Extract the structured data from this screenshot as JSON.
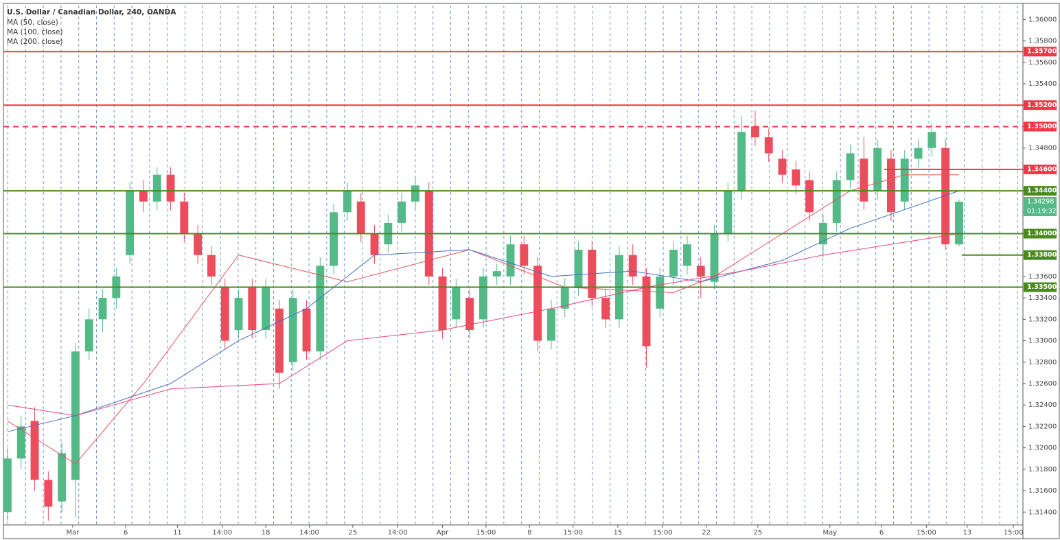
{
  "chart_data": {
    "type": "candlestick",
    "title": "U.S. Dollar / Canadian Dollar, 240, OANDA",
    "up_color": "#53b987",
    "down_color": "#eb4d5c",
    "open": [
      1.314,
      1.319,
      1.3225,
      1.317,
      1.315,
      1.317,
      1.329,
      1.332,
      1.334,
      1.338,
      1.344,
      1.343,
      1.3455,
      1.343,
      1.34,
      1.338,
      1.335,
      1.331,
      1.335,
      1.331,
      1.333,
      1.328,
      1.333,
      1.329,
      1.337,
      1.342,
      1.343,
      1.34,
      1.339,
      1.341,
      1.343,
      1.344,
      1.336,
      1.332,
      1.334,
      1.332,
      1.336,
      1.336,
      1.339,
      1.337,
      1.33,
      1.333,
      1.335,
      1.3385,
      1.334,
      1.332,
      1.338,
      1.336,
      1.333,
      1.336,
      1.337,
      1.337,
      1.3355,
      1.34,
      1.344,
      1.35,
      1.349,
      1.347,
      1.346,
      1.345,
      1.339,
      1.341,
      1.345,
      1.347,
      1.344,
      1.347,
      1.343,
      1.347,
      1.348,
      1.348,
      1.339
    ],
    "high": [
      1.32,
      1.323,
      1.3238,
      1.3178,
      1.3205,
      1.3298,
      1.333,
      1.3348,
      1.3368,
      1.3448,
      1.345,
      1.3462,
      1.3462,
      1.3438,
      1.3408,
      1.3388,
      1.3358,
      1.3348,
      1.3358,
      1.3358,
      1.3338,
      1.3348,
      1.3338,
      1.3378,
      1.3428,
      1.3448,
      1.3438,
      1.3408,
      1.3418,
      1.3438,
      1.3452,
      1.3448,
      1.3368,
      1.3358,
      1.3348,
      1.3368,
      1.3372,
      1.3398,
      1.3398,
      1.3378,
      1.3338,
      1.3358,
      1.3393,
      1.3393,
      1.3348,
      1.3388,
      1.339,
      1.3368,
      1.3368,
      1.3393,
      1.3398,
      1.3378,
      1.3408,
      1.3448,
      1.351,
      1.3515,
      1.3498,
      1.3478,
      1.3468,
      1.3458,
      1.3418,
      1.3458,
      1.3483,
      1.349,
      1.3488,
      1.3478,
      1.3478,
      1.3488,
      1.3503,
      1.3488,
      1.3432
    ],
    "low": [
      1.3132,
      1.318,
      1.316,
      1.3132,
      1.314,
      1.3135,
      1.3282,
      1.3308,
      1.333,
      1.3372,
      1.342,
      1.3422,
      1.3422,
      1.3392,
      1.3372,
      1.3352,
      1.3292,
      1.3302,
      1.3302,
      1.3302,
      1.3255,
      1.3272,
      1.3282,
      1.3282,
      1.3362,
      1.3412,
      1.3392,
      1.3372,
      1.3382,
      1.3402,
      1.3422,
      1.3352,
      1.3302,
      1.3312,
      1.3302,
      1.3312,
      1.3352,
      1.3352,
      1.3362,
      1.329,
      1.3292,
      1.3322,
      1.3342,
      1.3332,
      1.3312,
      1.3312,
      1.3352,
      1.3275,
      1.3322,
      1.3352,
      1.3362,
      1.334,
      1.3348,
      1.3392,
      1.3432,
      1.3482,
      1.3467,
      1.3447,
      1.3437,
      1.3412,
      1.3378,
      1.3402,
      1.3442,
      1.3422,
      1.3432,
      1.3412,
      1.3422,
      1.3462,
      1.3472,
      1.3385,
      1.3388
    ],
    "close": [
      1.319,
      1.322,
      1.317,
      1.3145,
      1.3195,
      1.329,
      1.332,
      1.334,
      1.336,
      1.344,
      1.343,
      1.3455,
      1.343,
      1.34,
      1.338,
      1.336,
      1.33,
      1.334,
      1.331,
      1.335,
      1.327,
      1.334,
      1.329,
      1.337,
      1.342,
      1.344,
      1.34,
      1.338,
      1.341,
      1.343,
      1.3445,
      1.336,
      1.331,
      1.335,
      1.331,
      1.336,
      1.3365,
      1.339,
      1.337,
      1.33,
      1.333,
      1.335,
      1.3385,
      1.334,
      1.332,
      1.338,
      1.336,
      1.3295,
      1.336,
      1.3385,
      1.339,
      1.336,
      1.34,
      1.344,
      1.3495,
      1.349,
      1.3475,
      1.3455,
      1.3445,
      1.342,
      1.341,
      1.345,
      1.3475,
      1.343,
      1.348,
      1.342,
      1.347,
      1.348,
      1.3495,
      1.339,
      1.34298
    ],
    "series": [
      {
        "name": "MA (50, close)",
        "color": "#e8505b",
        "x": [
          0,
          5,
          10,
          17,
          25,
          34,
          41,
          49,
          52,
          57,
          62,
          66,
          70
        ],
        "values": [
          1.3225,
          1.3185,
          1.326,
          1.338,
          1.3355,
          1.3385,
          1.335,
          1.3345,
          1.336,
          1.34,
          1.344,
          1.3455,
          1.3455
        ]
      },
      {
        "name": "MA (100, close)",
        "color": "#3f6fc4",
        "x": [
          0,
          5,
          12,
          17,
          22,
          27,
          34,
          40,
          46,
          51,
          57,
          62,
          70
        ],
        "values": [
          1.3215,
          1.323,
          1.326,
          1.33,
          1.333,
          1.338,
          1.3385,
          1.336,
          1.3365,
          1.3355,
          1.3375,
          1.3405,
          1.344
        ]
      },
      {
        "name": "MA (200, close)",
        "color": "#e8457a",
        "x": [
          0,
          5,
          12,
          20,
          25,
          32,
          40,
          47,
          54,
          60,
          70
        ],
        "values": [
          1.324,
          1.323,
          1.3255,
          1.326,
          1.33,
          1.331,
          1.333,
          1.335,
          1.3365,
          1.338,
          1.34
        ]
      }
    ],
    "levels": [
      {
        "value": 1.357,
        "label": "1.35700",
        "color": "#f23645"
      },
      {
        "value": 1.352,
        "label": "1.35200",
        "color": "#f23645"
      },
      {
        "value": 1.35,
        "label": "1.35000",
        "color": "#f23645",
        "dashed": true
      },
      {
        "value": 1.346,
        "label": "1.34600",
        "color": "#f23645",
        "from": 64.5
      },
      {
        "value": 1.344,
        "label": "1.34400",
        "color": "#4a8a1c"
      },
      {
        "value": 1.34,
        "label": "1.34000",
        "color": "#4a8a1c"
      },
      {
        "value": 1.338,
        "label": "1.33800",
        "color": "#4a8a1c",
        "from": 70.2
      },
      {
        "value": 1.335,
        "label": "1.33500",
        "color": "#4a8a1c"
      }
    ],
    "last_price": 1.34298,
    "countdown": "01:19:32",
    "xlim": [
      -0.3,
      74.7
    ],
    "xticks": [
      {
        "value": 4.8,
        "label": "Mar"
      },
      {
        "value": 8.7,
        "label": "6"
      },
      {
        "value": 12.5,
        "label": "11"
      },
      {
        "value": 15.8,
        "label": "14:00"
      },
      {
        "value": 19.0,
        "label": "18"
      },
      {
        "value": 22.2,
        "label": "14:00"
      },
      {
        "value": 25.4,
        "label": "25"
      },
      {
        "value": 28.7,
        "label": "14:00"
      },
      {
        "value": 32.0,
        "label": "Apr"
      },
      {
        "value": 35.2,
        "label": "15:00"
      },
      {
        "value": 38.4,
        "label": "8"
      },
      {
        "value": 41.6,
        "label": "15:00"
      },
      {
        "value": 44.9,
        "label": "15"
      },
      {
        "value": 48.2,
        "label": "15:00"
      },
      {
        "value": 51.4,
        "label": "22"
      },
      {
        "value": 55.2,
        "label": "25"
      },
      {
        "value": 60.5,
        "label": "May"
      },
      {
        "value": 64.3,
        "label": "6"
      },
      {
        "value": 67.6,
        "label": "15:00"
      },
      {
        "value": 70.6,
        "label": "13"
      },
      {
        "value": 74.0,
        "label": "15:00"
      }
    ],
    "ylim": [
      1.3128,
      1.3615
    ],
    "yticks": [
      {
        "value": 1.314,
        "label": "1.31400"
      },
      {
        "value": 1.316,
        "label": "1.31600"
      },
      {
        "value": 1.318,
        "label": "1.31800"
      },
      {
        "value": 1.32,
        "label": "1.32000"
      },
      {
        "value": 1.322,
        "label": "1.32200"
      },
      {
        "value": 1.324,
        "label": "1.32400"
      },
      {
        "value": 1.326,
        "label": "1.32600"
      },
      {
        "value": 1.328,
        "label": "1.32800"
      },
      {
        "value": 1.33,
        "label": "1.33000"
      },
      {
        "value": 1.332,
        "label": "1.33200"
      },
      {
        "value": 1.334,
        "label": "1.33400"
      },
      {
        "value": 1.336,
        "label": "1.33600"
      },
      {
        "value": 1.338,
        "label": "1.33800"
      },
      {
        "value": 1.34,
        "label": "1.34000"
      },
      {
        "value": 1.342,
        "label": "1.34200"
      },
      {
        "value": 1.344,
        "label": "1.34400"
      },
      {
        "value": 1.346,
        "label": "1.34600"
      },
      {
        "value": 1.348,
        "label": "1.34800"
      },
      {
        "value": 1.35,
        "label": "1.35000"
      },
      {
        "value": 1.352,
        "label": "1.35200"
      },
      {
        "value": 1.354,
        "label": "1.35400"
      },
      {
        "value": 1.356,
        "label": "1.35600"
      },
      {
        "value": 1.358,
        "label": "1.35800"
      },
      {
        "value": 1.36,
        "label": "1.36000"
      }
    ]
  }
}
